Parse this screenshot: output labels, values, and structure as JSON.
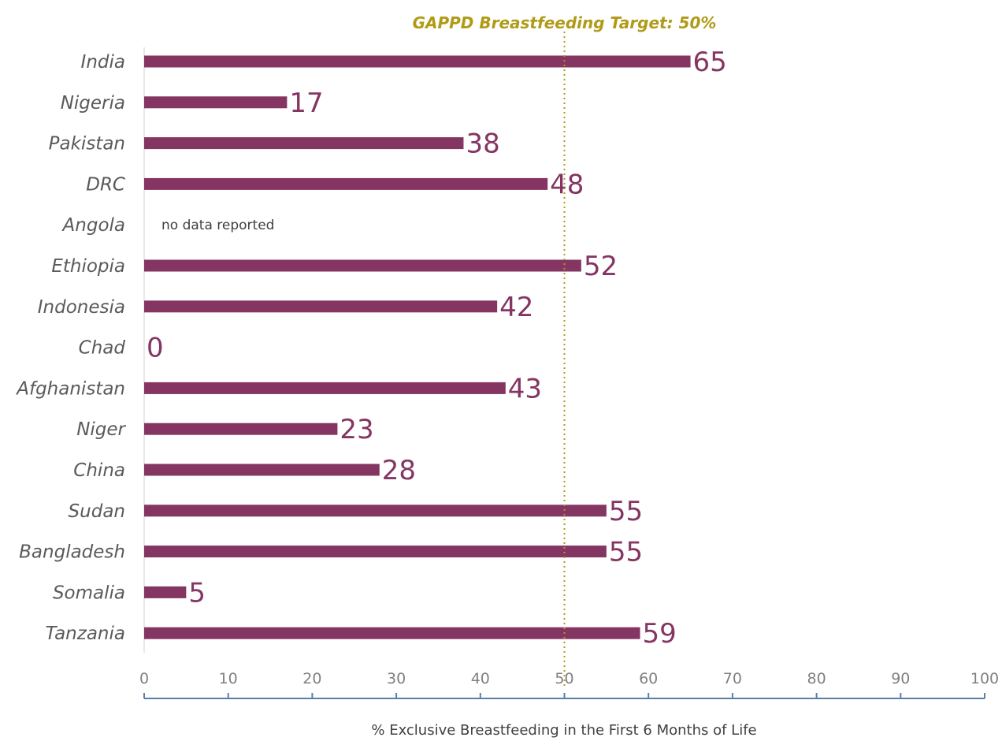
{
  "chart_data": {
    "type": "bar",
    "orientation": "horizontal",
    "categories": [
      "India",
      "Nigeria",
      "Pakistan",
      "DRC",
      "Angola",
      "Ethiopia",
      "Indonesia",
      "Chad",
      "Afghanistan",
      "Niger",
      "China",
      "Sudan",
      "Bangladesh",
      "Somalia",
      "Tanzania"
    ],
    "values": [
      65,
      17,
      38,
      48,
      null,
      52,
      42,
      0,
      43,
      23,
      28,
      55,
      55,
      5,
      59
    ],
    "value_labels": [
      "65",
      "17",
      "38",
      "48",
      "",
      "52",
      "42",
      "0",
      "43",
      "23",
      "28",
      "55",
      "55",
      "5",
      "59"
    ],
    "notes": [
      {
        "category": "Angola",
        "text": "no data reported"
      }
    ],
    "reference_line": {
      "value": 50,
      "label": "GAPPD Breastfeeding Target: 50%",
      "style": "dotted",
      "color": "#b09a16"
    },
    "xlabel": "% Exclusive Breastfeeding in the First 6 Months of Life",
    "xlim": [
      0,
      100
    ],
    "xticks": [
      0,
      10,
      20,
      30,
      40,
      50,
      60,
      70,
      80,
      90,
      100
    ],
    "xtick_labels": [
      "0",
      "10",
      "20",
      "30",
      "40",
      "50",
      "60",
      "70",
      "80",
      "90",
      "100"
    ],
    "grid": false,
    "legend": "none",
    "colors": {
      "bar": "#843562",
      "value_text": "#843562",
      "category_text": "#5a5a5a",
      "tick_text": "#808080",
      "axis_line": "#5b7fa6",
      "category_axis_line": "#d0d0d0"
    }
  }
}
